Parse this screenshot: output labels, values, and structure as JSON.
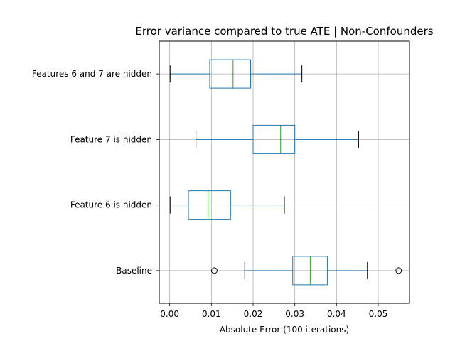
{
  "chart_data": {
    "type": "boxplot",
    "orientation": "horizontal",
    "title": "Error variance compared to true ATE | Non-Confounders",
    "xlabel": "Absolute Error (100 iterations)",
    "ylabel": "",
    "xlim": [
      -0.0025,
      0.0575
    ],
    "xticks": [
      0.0,
      0.01,
      0.02,
      0.03,
      0.04,
      0.05
    ],
    "xtick_labels": [
      "0.00",
      "0.01",
      "0.02",
      "0.03",
      "0.04",
      "0.05"
    ],
    "grid": true,
    "categories": [
      "Baseline",
      "Feature 6 is hidden",
      "Feature 7 is hidden",
      "Features 6 and 7 are hidden"
    ],
    "boxes": [
      {
        "label": "Baseline",
        "whisker_low": 0.018,
        "q1": 0.0295,
        "median": 0.0337,
        "q3": 0.0378,
        "whisker_high": 0.0474,
        "outliers": [
          0.0107,
          0.0549
        ]
      },
      {
        "label": "Feature 6 is hidden",
        "whisker_low": 0.0001,
        "q1": 0.0045,
        "median": 0.0092,
        "q3": 0.0146,
        "whisker_high": 0.0275,
        "outliers": []
      },
      {
        "label": "Feature 7 is hidden",
        "whisker_low": 0.0063,
        "q1": 0.02,
        "median": 0.0266,
        "q3": 0.03,
        "whisker_high": 0.0453,
        "outliers": []
      },
      {
        "label": "Features 6 and 7 are hidden",
        "whisker_low": 0.0001,
        "q1": 0.0096,
        "median": 0.0152,
        "q3": 0.0194,
        "whisker_high": 0.0317,
        "outliers": []
      }
    ],
    "colors": {
      "box": "#1f77b4",
      "median": "#2ca02c",
      "grid": "#b0b0b0",
      "axis": "#000000"
    }
  }
}
